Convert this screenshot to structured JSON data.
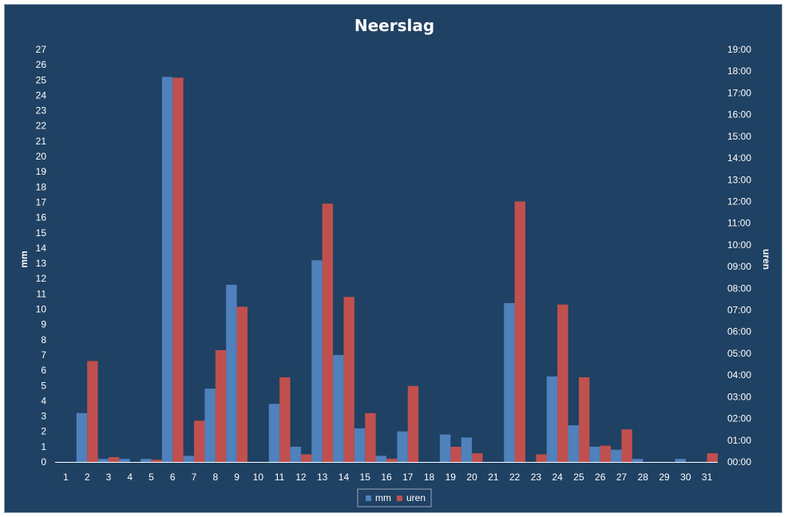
{
  "chart_data": {
    "type": "bar",
    "title": "Neerslag",
    "ylabel": "mm",
    "y2label": "uren",
    "ylim": [
      0,
      27
    ],
    "y2lim": [
      0,
      19
    ],
    "y2_unit": "hours (displayed as hh:mm)",
    "categories": [
      "1",
      "2",
      "3",
      "4",
      "5",
      "6",
      "7",
      "8",
      "9",
      "10",
      "11",
      "12",
      "13",
      "14",
      "15",
      "16",
      "17",
      "18",
      "19",
      "20",
      "21",
      "22",
      "23",
      "24",
      "25",
      "26",
      "27",
      "28",
      "29",
      "30",
      "31"
    ],
    "y_ticks": [
      "0",
      "1",
      "2",
      "3",
      "4",
      "5",
      "6",
      "7",
      "8",
      "9",
      "10",
      "11",
      "12",
      "13",
      "14",
      "15",
      "16",
      "17",
      "18",
      "19",
      "20",
      "21",
      "22",
      "23",
      "24",
      "25",
      "26",
      "27"
    ],
    "y2_ticks": [
      "00:00",
      "01:00",
      "02:00",
      "03:00",
      "04:00",
      "05:00",
      "06:00",
      "07:00",
      "08:00",
      "09:00",
      "10:00",
      "11:00",
      "12:00",
      "13:00",
      "14:00",
      "15:00",
      "16:00",
      "17:00",
      "18:00",
      "19:00"
    ],
    "series": [
      {
        "name": "mm",
        "axis": "left",
        "color": "#4f81bd",
        "values": [
          0,
          3.2,
          0.2,
          0.2,
          0.2,
          25.2,
          0.4,
          4.8,
          11.6,
          0,
          3.8,
          1.0,
          13.2,
          7.0,
          2.2,
          0.4,
          2.0,
          0,
          1.8,
          1.6,
          0,
          10.4,
          0,
          5.6,
          2.4,
          1.0,
          0.8,
          0.2,
          0,
          0.2,
          0
        ]
      },
      {
        "name": "uren",
        "axis": "right",
        "color": "#c0504d",
        "values": [
          0,
          4.65,
          0.22,
          0,
          0.1,
          17.7,
          1.9,
          5.15,
          7.15,
          0,
          3.9,
          0.35,
          11.9,
          7.6,
          2.25,
          0.15,
          3.5,
          0,
          0.7,
          0.4,
          0,
          12.0,
          0.35,
          7.25,
          3.9,
          0.75,
          1.5,
          0,
          0,
          0,
          0.4
        ]
      }
    ],
    "grid": false,
    "legend_position": "bottom"
  }
}
